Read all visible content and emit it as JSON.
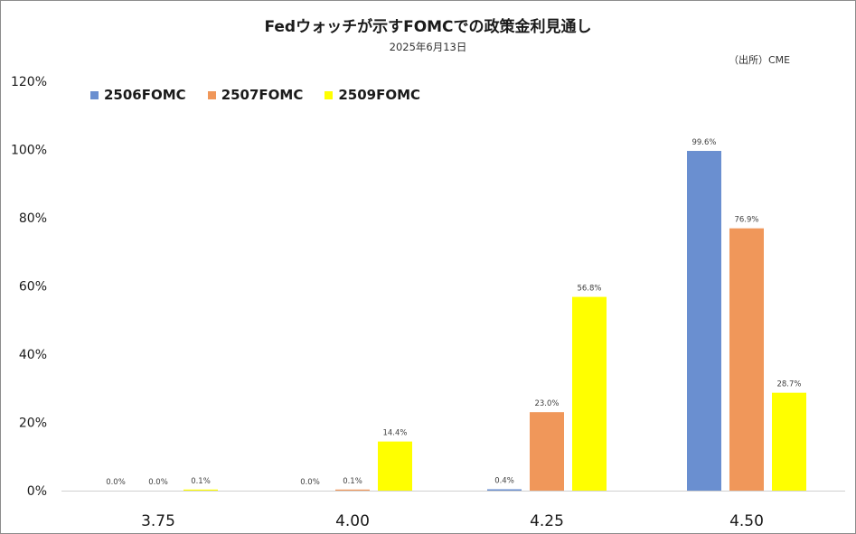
{
  "chart_data": {
    "type": "bar",
    "title": "Fedウォッチが示すFOMCでの政策金利見通し",
    "subtitle": "2025年6月13日",
    "source": "（出所）CME",
    "categories": [
      "3.75",
      "4.00",
      "4.25",
      "4.50"
    ],
    "series": [
      {
        "name": "2506FOMC",
        "color": "#6a8fd0",
        "values": [
          0.0,
          0.0,
          0.4,
          99.6
        ],
        "labels": [
          "0.0%",
          "0.0%",
          "0.4%",
          "99.6%"
        ]
      },
      {
        "name": "2507FOMC",
        "color": "#f0975a",
        "values": [
          0.0,
          0.1,
          23.0,
          76.9
        ],
        "labels": [
          "0.0%",
          "0.1%",
          "23.0%",
          "76.9%"
        ]
      },
      {
        "name": "2509FOMC",
        "color": "#ffff00",
        "values": [
          0.1,
          14.4,
          56.8,
          28.7
        ],
        "labels": [
          "0.1%",
          "14.4%",
          "56.8%",
          "28.7%"
        ]
      }
    ],
    "ylim": [
      0,
      120
    ],
    "yticks": [
      "0%",
      "20%",
      "40%",
      "60%",
      "80%",
      "100%",
      "120%"
    ],
    "grid": false,
    "legend_position": "top-left",
    "xlabel": "",
    "ylabel": ""
  }
}
